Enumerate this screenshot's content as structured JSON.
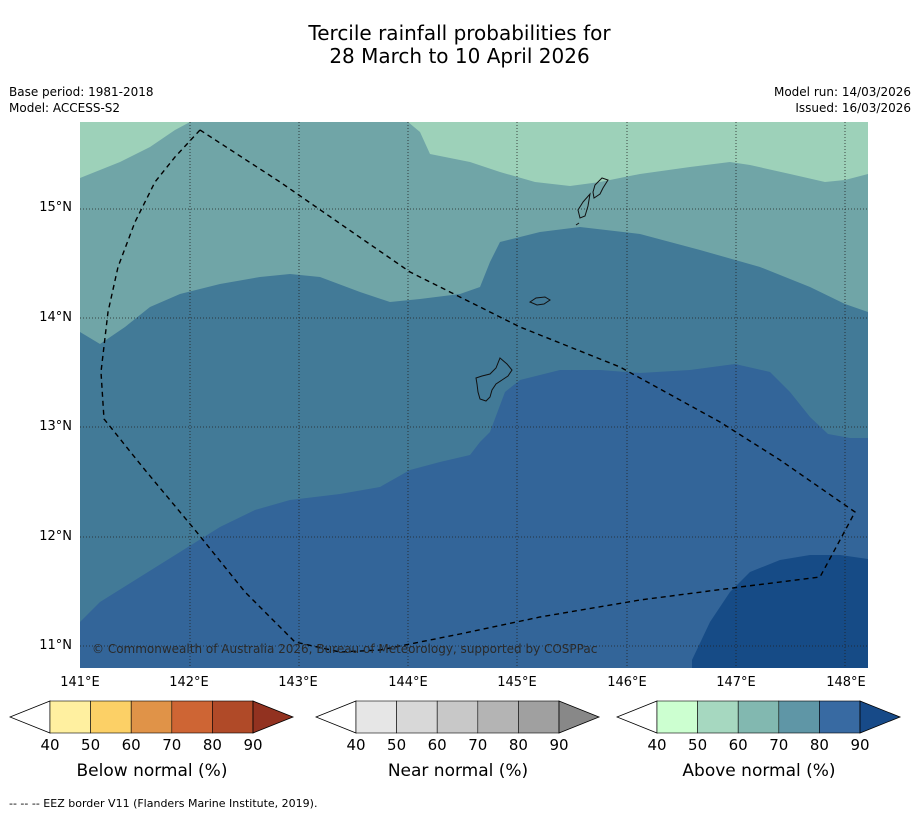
{
  "title_line1": "Tercile rainfall probabilities for",
  "title_line2": "28 March to 10 April 2026",
  "base_period": "Base period: 1981-2018",
  "model": "Model: ACCESS-S2",
  "model_run": "Model run: 14/03/2026",
  "issued": "Issued: 16/03/2026",
  "copyright": "© Commonwealth of Australia 2026, Bureau of Meteorology, supported by COSPPac",
  "lat_labels": [
    "15°N",
    "14°N",
    "13°N",
    "12°N",
    "11°N"
  ],
  "lon_labels": [
    "141°E",
    "142°E",
    "143°E",
    "144°E",
    "145°E",
    "146°E",
    "147°E",
    "148°E"
  ],
  "colorbars": [
    {
      "title": "Below normal (%)",
      "ticks": [
        "40",
        "50",
        "60",
        "70",
        "80",
        "90"
      ],
      "colors": [
        "#fff0a0",
        "#fcd066",
        "#e09348",
        "#ce6534",
        "#b04a28",
        "#923220"
      ]
    },
    {
      "title": "Near normal (%)",
      "ticks": [
        "40",
        "50",
        "60",
        "70",
        "80",
        "90"
      ],
      "colors": [
        "#e6e6e6",
        "#d8d8d8",
        "#c8c8c8",
        "#b4b4b4",
        "#a0a0a0",
        "#888888"
      ]
    },
    {
      "title": "Above normal (%)",
      "ticks": [
        "40",
        "50",
        "60",
        "70",
        "80",
        "90"
      ],
      "colors": [
        "#ccffd0",
        "#a6d8c0",
        "#82b8b0",
        "#5f96a6",
        "#386aa2",
        "#174a88"
      ]
    }
  ],
  "footnote": "--  --  -- EEZ border V11 (Flanders Marine Institute, 2019).",
  "map_colors": {
    "above_50": "#9dd1b9",
    "above_60": "#70a5a7",
    "above_70": "#427a97",
    "above_80": "#336599",
    "above_90": "#164b86"
  }
}
